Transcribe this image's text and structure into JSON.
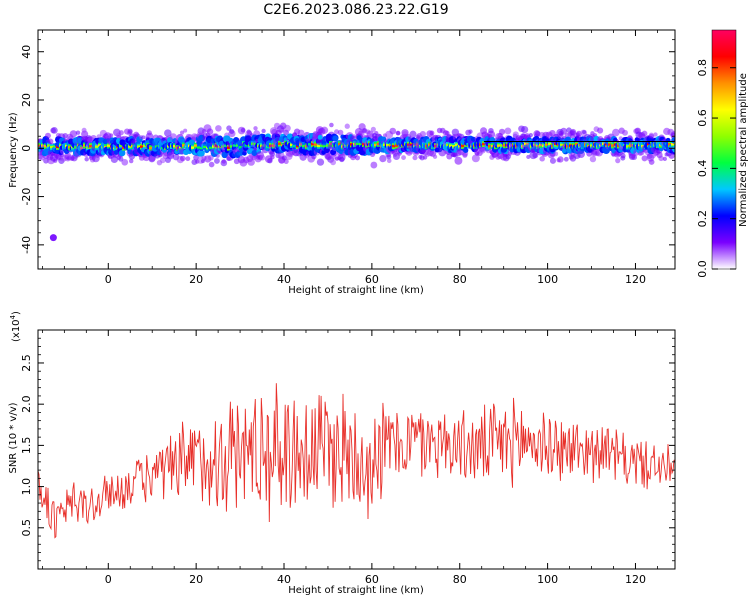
{
  "title": "C2E6.2023.086.23.22.G19",
  "chart_data": [
    {
      "type": "heatmap",
      "name": "spectrogram",
      "xlabel": "Height of straight line (km)",
      "ylabel": "Frequency (Hz)",
      "xlim": [
        -16,
        129
      ],
      "ylim": [
        -50,
        49
      ],
      "xticks": [
        0,
        20,
        40,
        60,
        80,
        100,
        120
      ],
      "yticks": [
        -40,
        -20,
        0,
        20,
        40
      ],
      "reference_line_frequency": 2.8,
      "colorbar": {
        "label": "Normalized spectral amplitude",
        "range": [
          0,
          0.95
        ],
        "ticks": [
          "0.0",
          "0.2",
          "0.4",
          "0.6",
          "0.8"
        ],
        "colors": [
          "#ffffff",
          "#7a00ff",
          "#0000ff",
          "#00c8ff",
          "#00ff40",
          "#90ff00",
          "#ffff00",
          "#ff9000",
          "#ff0000",
          "#ff0060"
        ]
      },
      "outlier_point": {
        "x": -12.5,
        "y": -37
      }
    },
    {
      "type": "line",
      "name": "snr",
      "xlabel": "Height of straight line (km)",
      "ylabel": "SNR (10 * v/v)",
      "y_multiplier": "(x10",
      "y_multiplier_exp": "4",
      "y_multiplier_close": ")",
      "xlim": [
        -16,
        129
      ],
      "ylim": [
        0,
        2.9
      ],
      "xticks": [
        0,
        20,
        40,
        60,
        80,
        100,
        120
      ],
      "yticks": [
        0.5,
        1.0,
        1.5,
        2.0,
        2.5
      ],
      "ytick_labels": [
        "0.5",
        "1.0",
        "1.5",
        "2.0",
        "2.5"
      ],
      "color": "#e8302a",
      "envelope": {
        "x": [
          -16,
          -12,
          -8,
          -4,
          0,
          4,
          8,
          12,
          16,
          20,
          24,
          28,
          32,
          36,
          40,
          44,
          48,
          52,
          56,
          60,
          64,
          68,
          72,
          76,
          80,
          84,
          88,
          92,
          96,
          100,
          104,
          108,
          112,
          116,
          120,
          124,
          129
        ],
        "mean": [
          1.05,
          0.55,
          0.8,
          0.75,
          0.9,
          1.0,
          1.1,
          1.15,
          1.2,
          1.3,
          1.35,
          1.4,
          1.45,
          1.45,
          1.45,
          1.45,
          1.5,
          1.45,
          1.4,
          1.35,
          1.5,
          1.55,
          1.55,
          1.55,
          1.5,
          1.45,
          1.5,
          1.55,
          1.55,
          1.5,
          1.45,
          1.45,
          1.45,
          1.35,
          1.3,
          1.25,
          1.2
        ],
        "amp": [
          0.3,
          0.35,
          0.35,
          0.35,
          0.3,
          0.3,
          0.35,
          0.45,
          0.6,
          0.7,
          0.75,
          0.85,
          0.9,
          0.95,
          0.95,
          0.95,
          0.9,
          0.9,
          0.9,
          0.85,
          0.6,
          0.55,
          0.55,
          0.5,
          0.5,
          0.55,
          0.6,
          0.6,
          0.55,
          0.55,
          0.45,
          0.45,
          0.4,
          0.4,
          0.35,
          0.35,
          0.3
        ]
      },
      "samples": 640
    }
  ]
}
